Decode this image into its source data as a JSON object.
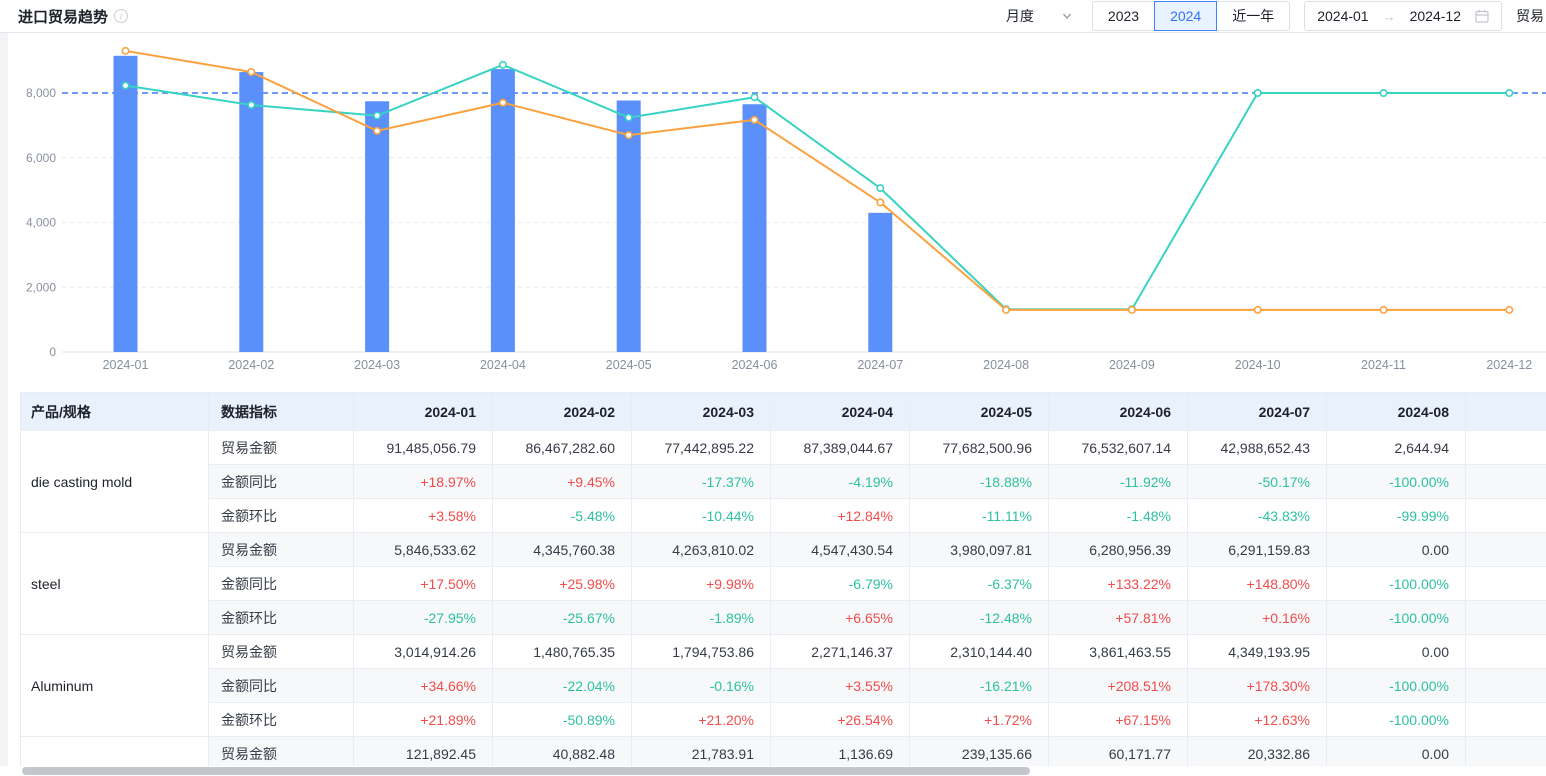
{
  "header": {
    "title": "进口贸易趋势",
    "frequency_select": {
      "value": "月度"
    },
    "year_buttons": [
      "2023",
      "2024",
      "近一年"
    ],
    "active_year": "2024",
    "date_range": {
      "start": "2024-01",
      "arrow": "→",
      "end": "2024-12"
    },
    "trailing_label": "贸易"
  },
  "chart_data": {
    "type": "bar+line",
    "categories": [
      "2024-01",
      "2024-02",
      "2024-03",
      "2024-04",
      "2024-05",
      "2024-06",
      "2024-07",
      "2024-08",
      "2024-09",
      "2024-10",
      "2024-11",
      "2024-12"
    ],
    "series": [
      {
        "name": "trade-amount-bar",
        "type": "bar",
        "color": "#5b8ff9",
        "values": [
          9148.5,
          8646.7,
          7744.3,
          8738.9,
          7768.3,
          7653.3,
          4298.9,
          0.3,
          0,
          0,
          0,
          0
        ]
      },
      {
        "name": "line-teal",
        "type": "line",
        "color": "#38d3c2",
        "values": [
          8230,
          7630,
          7300,
          8870,
          7240,
          7870,
          5060,
          1320,
          1320,
          8000,
          8000,
          8000
        ]
      },
      {
        "name": "line-orange",
        "type": "line",
        "color": "#faa23f",
        "values": [
          9300,
          8650,
          6830,
          7700,
          6700,
          7170,
          4620,
          1300,
          1300,
          1300,
          1300,
          1300
        ]
      }
    ],
    "yticks": [
      0,
      2000,
      4000,
      6000,
      8000
    ],
    "ytick_labels": [
      "0",
      "2,000",
      "4,000",
      "6,000",
      "8,000"
    ],
    "ylim": [
      0,
      9900
    ],
    "markline": {
      "value": 8000,
      "color": "#5b8ff9",
      "style": "dashed"
    },
    "grid": "horizontal-dashed",
    "legend": "none"
  },
  "table": {
    "columns": [
      "产品/规格",
      "数据指标",
      "2024-01",
      "2024-02",
      "2024-03",
      "2024-04",
      "2024-05",
      "2024-06",
      "2024-07",
      "2024-08",
      ""
    ],
    "products": [
      {
        "name": "die casting mold",
        "rows": [
          {
            "label": "贸易金额",
            "values": [
              "91,485,056.79",
              "86,467,282.60",
              "77,442,895.22",
              "87,389,044.67",
              "77,682,500.96",
              "76,532,607.14",
              "42,988,652.43",
              "2,644.94"
            ]
          },
          {
            "label": "金额同比",
            "values": [
              "+18.97%",
              "+9.45%",
              "-17.37%",
              "-4.19%",
              "-18.88%",
              "-11.92%",
              "-50.17%",
              "-100.00%"
            ]
          },
          {
            "label": "金额环比",
            "values": [
              "+3.58%",
              "-5.48%",
              "-10.44%",
              "+12.84%",
              "-11.11%",
              "-1.48%",
              "-43.83%",
              "-99.99%"
            ]
          }
        ]
      },
      {
        "name": "steel",
        "rows": [
          {
            "label": "贸易金额",
            "values": [
              "5,846,533.62",
              "4,345,760.38",
              "4,263,810.02",
              "4,547,430.54",
              "3,980,097.81",
              "6,280,956.39",
              "6,291,159.83",
              "0.00"
            ]
          },
          {
            "label": "金额同比",
            "values": [
              "+17.50%",
              "+25.98%",
              "+9.98%",
              "-6.79%",
              "-6.37%",
              "+133.22%",
              "+148.80%",
              "-100.00%"
            ]
          },
          {
            "label": "金额环比",
            "values": [
              "-27.95%",
              "-25.67%",
              "-1.89%",
              "+6.65%",
              "-12.48%",
              "+57.81%",
              "+0.16%",
              "-100.00%"
            ]
          }
        ]
      },
      {
        "name": "Aluminum",
        "rows": [
          {
            "label": "贸易金额",
            "values": [
              "3,014,914.26",
              "1,480,765.35",
              "1,794,753.86",
              "2,271,146.37",
              "2,310,144.40",
              "3,861,463.55",
              "4,349,193.95",
              "0.00"
            ]
          },
          {
            "label": "金额同比",
            "values": [
              "+34.66%",
              "-22.04%",
              "-0.16%",
              "+3.55%",
              "-16.21%",
              "+208.51%",
              "+178.30%",
              "-100.00%"
            ]
          },
          {
            "label": "金额环比",
            "values": [
              "+21.89%",
              "-50.89%",
              "+21.20%",
              "+26.54%",
              "+1.72%",
              "+67.15%",
              "+12.63%",
              "-100.00%"
            ]
          }
        ]
      },
      {
        "name": "",
        "rows": [
          {
            "label": "贸易金额",
            "values": [
              "121,892.45",
              "40,882.48",
              "21,783.91",
              "1,136.69",
              "239,135.66",
              "60,171.77",
              "20,332.86",
              "0.00"
            ]
          }
        ]
      }
    ]
  },
  "colors": {
    "bar": "#5b8ff9",
    "line_orange": "#faa23f",
    "line_teal": "#38d3c2",
    "markline": "#5b8ff9",
    "positive": "#f04c4c",
    "negative": "#2ec1a2",
    "header_bg": "#e9f1fc",
    "active_button": "#3370ff"
  }
}
